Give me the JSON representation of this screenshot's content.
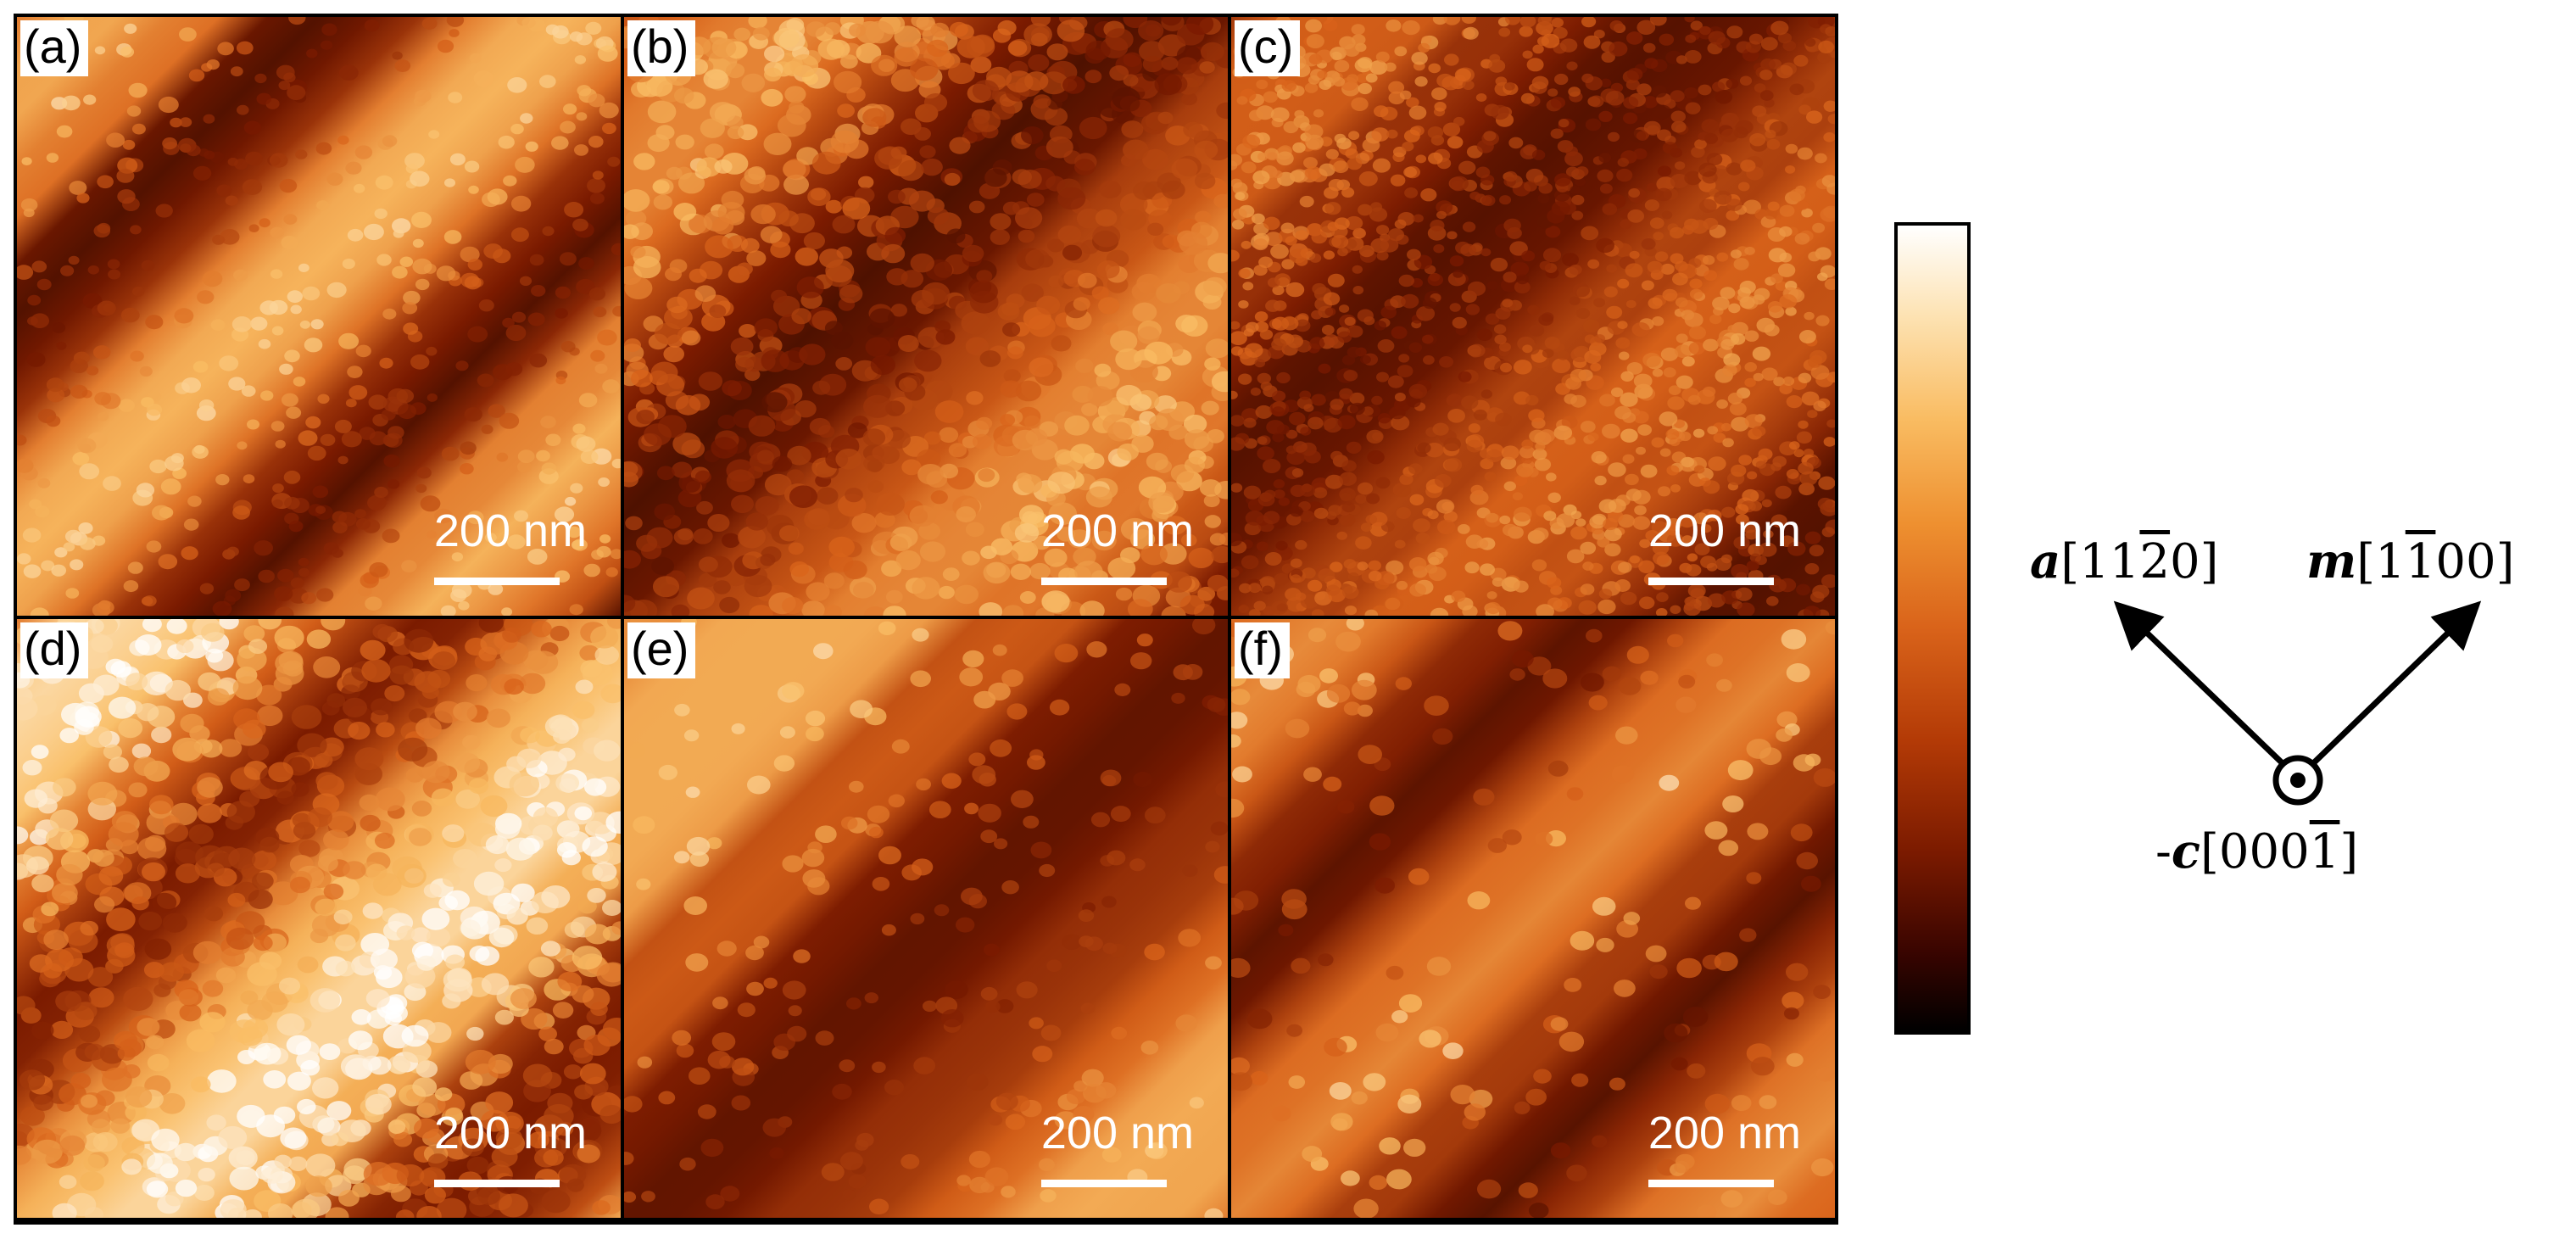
{
  "figure": {
    "panels": [
      {
        "label": "(a)",
        "scale_bar": "200 nm"
      },
      {
        "label": "(b)",
        "scale_bar": "200 nm"
      },
      {
        "label": "(c)",
        "scale_bar": "200 nm"
      },
      {
        "label": "(d)",
        "scale_bar": "200 nm"
      },
      {
        "label": "(e)",
        "scale_bar": "200 nm"
      },
      {
        "label": "(f)",
        "scale_bar": "200 nm"
      }
    ],
    "colormap": [
      "#000000",
      "#7a1a00",
      "#d9631a",
      "#f9bc62",
      "#ffffff"
    ],
    "orientation": {
      "a_symbol": "a",
      "a_index_pre": "[11",
      "a_index_bar": "2",
      "a_index_post": "0]",
      "m_symbol": "m",
      "m_index_pre": "[1",
      "m_index_bar": "1",
      "m_index_post": "00]",
      "c_prefix": "-",
      "c_symbol": "c",
      "c_index_pre": "[000",
      "c_index_bar": "1",
      "c_index_post": "]",
      "arrow_icon": "arrow-icon",
      "out_of_plane_icon": "circled-dot-icon"
    }
  }
}
